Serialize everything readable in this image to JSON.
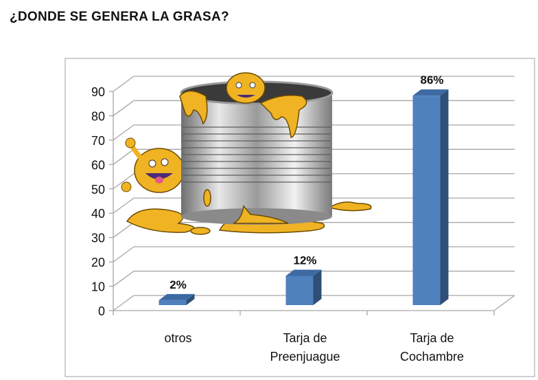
{
  "chart_data": {
    "type": "bar",
    "title": "¿DONDE SE GENERA LA GRASA?",
    "categories": [
      [
        "otros"
      ],
      [
        "Tarja de",
        "Preenjuague"
      ],
      [
        "Tarja de",
        "Cochambre"
      ]
    ],
    "values": [
      2,
      12,
      86
    ],
    "data_labels": [
      "2%",
      "12%",
      "86%"
    ],
    "yticks": [
      "0",
      "10",
      "20",
      "30",
      "40",
      "50",
      "60",
      "70",
      "80",
      "90"
    ],
    "ylim": [
      0,
      90
    ],
    "xlabel": "",
    "ylabel": "",
    "grid": true,
    "style": "3d-column",
    "colors": {
      "bar_front": "#4f81bd",
      "bar_side": "#2f4f78",
      "bar_top": "#3d6aa3",
      "grid": "#a6a6a6"
    }
  },
  "decoration": {
    "picture": "grease-monsters-tin-can-icon"
  }
}
